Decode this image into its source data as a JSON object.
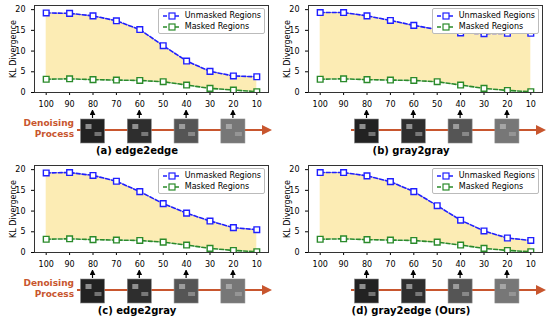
{
  "chart_data": [
    {
      "type": "line",
      "title": "(a) edge2edge",
      "annotation": "Denoising Process",
      "x": [
        100,
        90,
        80,
        70,
        60,
        50,
        40,
        30,
        20,
        10
      ],
      "xlim": [
        105,
        5
      ],
      "xticks": [
        100,
        90,
        80,
        70,
        60,
        50,
        40,
        30,
        20,
        10
      ],
      "ylim": [
        0,
        21
      ],
      "yticks": [
        0,
        5,
        10,
        15,
        20
      ],
      "ylabel": "KL Divergence",
      "legend": "upper right",
      "series": [
        {
          "name": "Unmasked Regions",
          "color": "#1f1fff",
          "marker": "square",
          "line_style": "dashed",
          "values": [
            19.2,
            19.1,
            18.5,
            17.3,
            15.2,
            11.3,
            7.6,
            5.1,
            4.0,
            3.8
          ]
        },
        {
          "name": "Masked Regions",
          "color": "#2a8a2a",
          "marker": "square",
          "line_style": "dashed",
          "values": [
            3.2,
            3.3,
            3.1,
            3.0,
            2.9,
            2.6,
            1.8,
            1.0,
            0.6,
            0.2
          ]
        }
      ]
    },
    {
      "type": "line",
      "title": "(b) gray2gray",
      "x": [
        100,
        90,
        80,
        70,
        60,
        50,
        40,
        30,
        20,
        10
      ],
      "xlim": [
        105,
        5
      ],
      "xticks": [
        100,
        90,
        80,
        70,
        60,
        50,
        40,
        30,
        20,
        10
      ],
      "ylim": [
        0,
        21
      ],
      "yticks": [
        0,
        5,
        10,
        15,
        20
      ],
      "ylabel": "KL Divergence",
      "legend": "upper right",
      "series": [
        {
          "name": "Unmasked Regions",
          "color": "#1f1fff",
          "marker": "square",
          "line_style": "dashed",
          "values": [
            19.3,
            19.3,
            18.5,
            17.4,
            16.2,
            15.2,
            14.4,
            14.2,
            14.3,
            14.3
          ]
        },
        {
          "name": "Masked Regions",
          "color": "#2a8a2a",
          "marker": "square",
          "line_style": "dashed",
          "values": [
            3.2,
            3.3,
            3.1,
            3.0,
            2.9,
            2.6,
            1.8,
            1.0,
            0.5,
            0.2
          ]
        }
      ]
    },
    {
      "type": "line",
      "title": "(c) edge2gray",
      "annotation": "Denoising Process",
      "x": [
        100,
        90,
        80,
        70,
        60,
        50,
        40,
        30,
        20,
        10
      ],
      "xlim": [
        105,
        5
      ],
      "xticks": [
        100,
        90,
        80,
        70,
        60,
        50,
        40,
        30,
        20,
        10
      ],
      "ylim": [
        0,
        21
      ],
      "yticks": [
        0,
        5,
        10,
        15,
        20
      ],
      "ylabel": "KL Divergence",
      "legend": "upper right",
      "series": [
        {
          "name": "Unmasked Regions",
          "color": "#1f1fff",
          "marker": "square",
          "line_style": "dashed",
          "values": [
            19.2,
            19.3,
            18.6,
            17.2,
            14.7,
            11.8,
            9.5,
            7.6,
            6.0,
            5.5
          ]
        },
        {
          "name": "Masked Regions",
          "color": "#2a8a2a",
          "marker": "square",
          "line_style": "dashed",
          "values": [
            3.2,
            3.3,
            3.1,
            3.0,
            2.9,
            2.5,
            1.8,
            1.0,
            0.5,
            0.2
          ]
        }
      ]
    },
    {
      "type": "line",
      "title": "(d) gray2edge (Ours)",
      "x": [
        100,
        90,
        80,
        70,
        60,
        50,
        40,
        30,
        20,
        10
      ],
      "xlim": [
        105,
        5
      ],
      "xticks": [
        100,
        90,
        80,
        70,
        60,
        50,
        40,
        30,
        20,
        10
      ],
      "ylim": [
        0,
        21
      ],
      "yticks": [
        0,
        5,
        10,
        15,
        20
      ],
      "ylabel": "KL Divergence",
      "legend": "upper right",
      "series": [
        {
          "name": "Unmasked Regions",
          "color": "#1f1fff",
          "marker": "square",
          "line_style": "dashed",
          "values": [
            19.3,
            19.3,
            18.5,
            17.1,
            14.7,
            11.3,
            7.8,
            5.2,
            3.5,
            2.9
          ]
        },
        {
          "name": "Masked Regions",
          "color": "#2a8a2a",
          "marker": "square",
          "line_style": "dashed",
          "values": [
            3.2,
            3.3,
            3.1,
            3.0,
            2.9,
            2.5,
            1.8,
            1.0,
            0.5,
            0.2
          ]
        }
      ]
    }
  ]
}
